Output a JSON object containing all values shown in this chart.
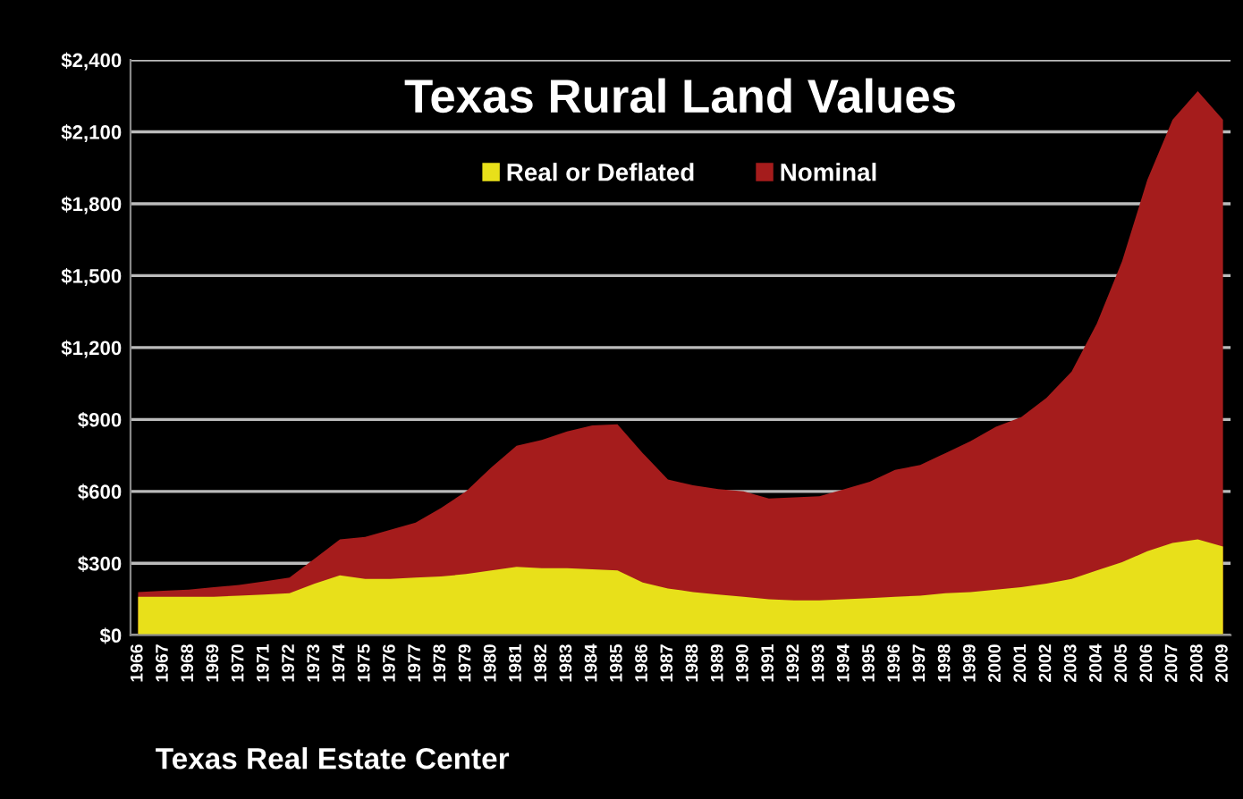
{
  "chart_data": {
    "type": "area",
    "title": "Texas Rural Land Values",
    "annotations": [
      "Texas Real Estate Center"
    ],
    "categories": [
      "1966",
      "1967",
      "1968",
      "1969",
      "1970",
      "1971",
      "1972",
      "1973",
      "1974",
      "1975",
      "1976",
      "1977",
      "1978",
      "1979",
      "1980",
      "1981",
      "1982",
      "1983",
      "1984",
      "1985",
      "1986",
      "1987",
      "1988",
      "1989",
      "1990",
      "1991",
      "1992",
      "1993",
      "1994",
      "1995",
      "1996",
      "1997",
      "1998",
      "1999",
      "2000",
      "2001",
      "2002",
      "2003",
      "2004",
      "2005",
      "2006",
      "2007",
      "2008",
      "2009"
    ],
    "series": [
      {
        "name": "Nominal",
        "color": "#a51c1c",
        "values": [
          180,
          185,
          190,
          200,
          210,
          225,
          240,
          320,
          400,
          410,
          440,
          470,
          530,
          600,
          700,
          790,
          815,
          850,
          875,
          880,
          760,
          650,
          625,
          610,
          600,
          570,
          575,
          580,
          610,
          640,
          690,
          710,
          760,
          810,
          870,
          910,
          990,
          1100,
          1300,
          1560,
          1900,
          2150,
          2270,
          2150
        ]
      },
      {
        "name": "Real or Deflated",
        "color": "#e8e01a",
        "values": [
          160,
          160,
          160,
          160,
          165,
          170,
          175,
          215,
          250,
          235,
          235,
          240,
          245,
          255,
          270,
          285,
          280,
          280,
          275,
          270,
          220,
          195,
          180,
          170,
          160,
          150,
          145,
          145,
          150,
          155,
          160,
          165,
          175,
          180,
          190,
          200,
          215,
          235,
          270,
          305,
          350,
          385,
          400,
          370
        ]
      }
    ],
    "ylim": [
      0,
      2400
    ],
    "yticks": [
      {
        "value": 0,
        "label": "$0"
      },
      {
        "value": 300,
        "label": "$300"
      },
      {
        "value": 600,
        "label": "$600"
      },
      {
        "value": 900,
        "label": "$900"
      },
      {
        "value": 1200,
        "label": "$1,200"
      },
      {
        "value": 1500,
        "label": "$1,500"
      },
      {
        "value": 1800,
        "label": "$1,800"
      },
      {
        "value": 2100,
        "label": "$2,100"
      },
      {
        "value": 2400,
        "label": "$2,400"
      }
    ],
    "grid": "y",
    "legend": "top"
  }
}
